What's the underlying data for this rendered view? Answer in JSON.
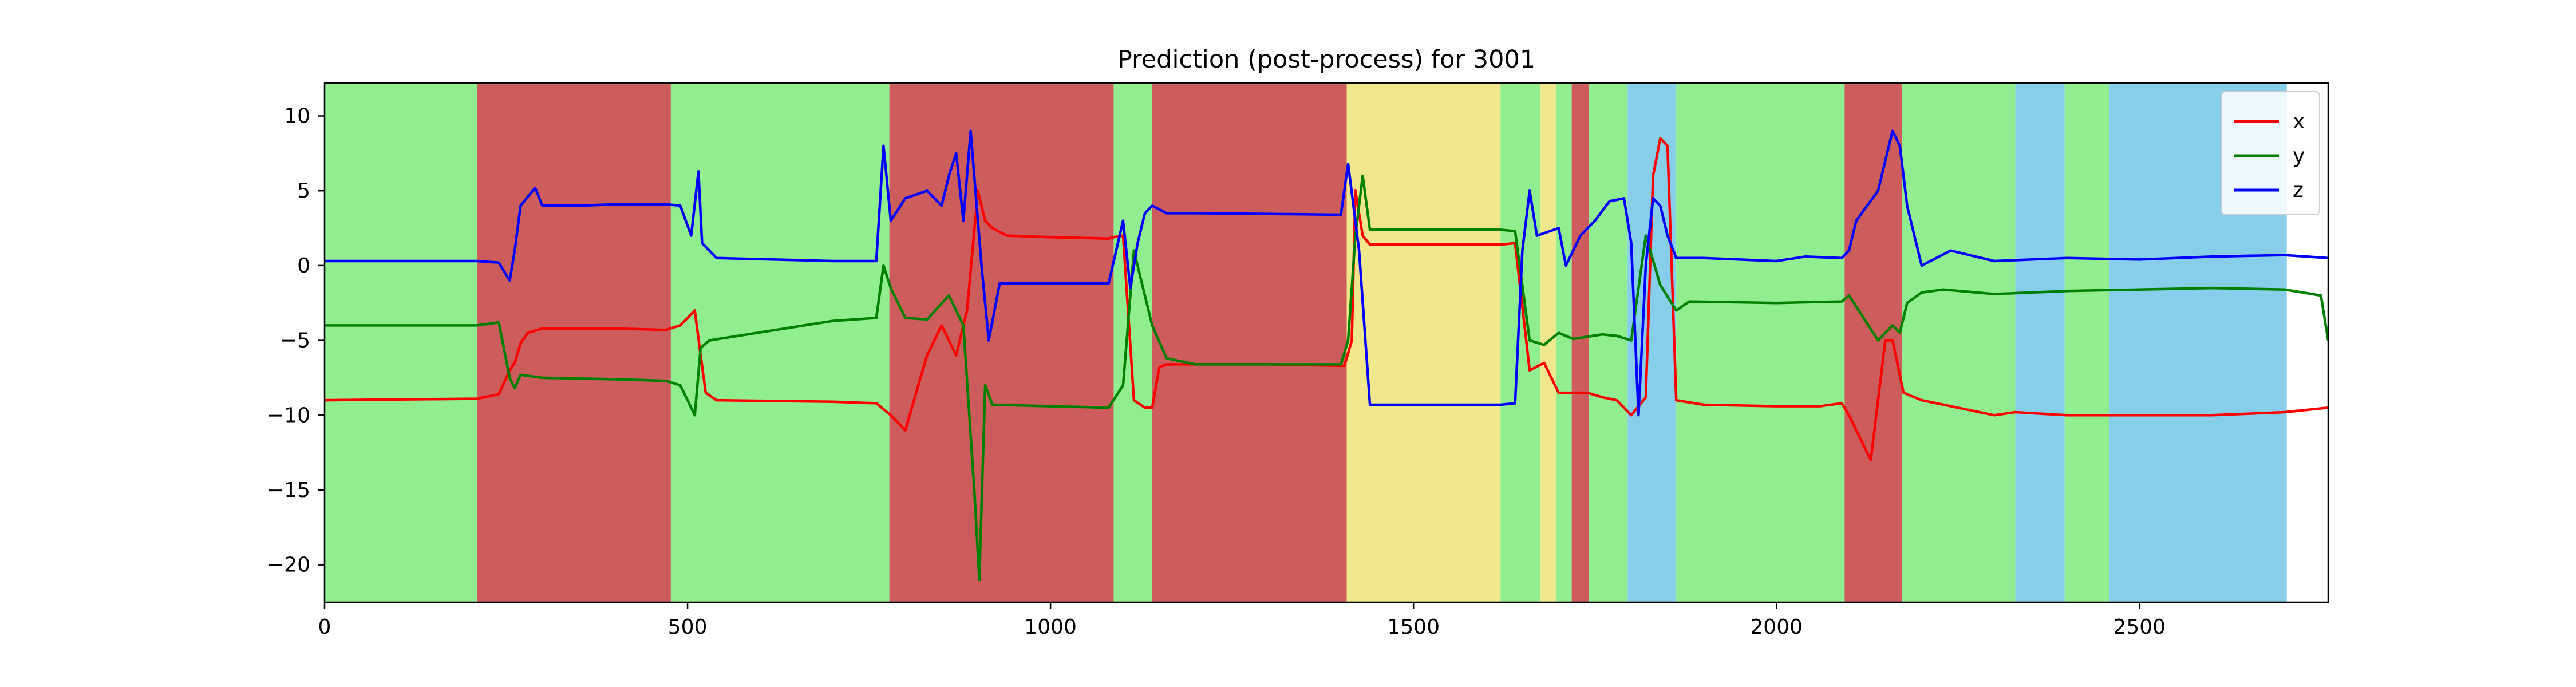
{
  "chart_data": {
    "type": "line",
    "title": "Prediction (post-process) for 3001",
    "xlabel": "",
    "ylabel": "",
    "xlim": [
      0,
      2760
    ],
    "ylim": [
      -22.5,
      12.2
    ],
    "x_ticks": [
      0,
      500,
      1000,
      1500,
      2000,
      2500
    ],
    "y_ticks": [
      10,
      5,
      0,
      -5,
      -10,
      -15,
      -20
    ],
    "x_tick_labels": [
      "0",
      "500",
      "1000",
      "1500",
      "2000",
      "2500"
    ],
    "y_tick_labels": [
      "10",
      "5",
      "0",
      "−5",
      "−10",
      "−15",
      "−20"
    ],
    "grid": false,
    "legend_position": "top-right",
    "background_bands": [
      {
        "start": 0,
        "end": 210,
        "color": "#90EE90"
      },
      {
        "start": 210,
        "end": 477,
        "color": "#CD5C5C"
      },
      {
        "start": 477,
        "end": 778,
        "color": "#90EE90"
      },
      {
        "start": 778,
        "end": 1087,
        "color": "#CD5C5C"
      },
      {
        "start": 1087,
        "end": 1140,
        "color": "#90EE90"
      },
      {
        "start": 1140,
        "end": 1408,
        "color": "#CD5C5C"
      },
      {
        "start": 1408,
        "end": 1620,
        "color": "#F0E68C"
      },
      {
        "start": 1620,
        "end": 1675,
        "color": "#90EE90"
      },
      {
        "start": 1675,
        "end": 1697,
        "color": "#F0E68C"
      },
      {
        "start": 1697,
        "end": 1718,
        "color": "#90EE90"
      },
      {
        "start": 1718,
        "end": 1742,
        "color": "#CD5C5C"
      },
      {
        "start": 1742,
        "end": 1795,
        "color": "#90EE90"
      },
      {
        "start": 1795,
        "end": 1862,
        "color": "#87CEEB"
      },
      {
        "start": 1862,
        "end": 2094,
        "color": "#90EE90"
      },
      {
        "start": 2094,
        "end": 2173,
        "color": "#CD5C5C"
      },
      {
        "start": 2173,
        "end": 2329,
        "color": "#90EE90"
      },
      {
        "start": 2329,
        "end": 2397,
        "color": "#87CEEB"
      },
      {
        "start": 2397,
        "end": 2458,
        "color": "#90EE90"
      },
      {
        "start": 2458,
        "end": 2703,
        "color": "#87CEEB"
      }
    ],
    "series": [
      {
        "name": "x",
        "color": "#FF0000",
        "points": [
          [
            0,
            -9
          ],
          [
            210,
            -8.9
          ],
          [
            240,
            -8.6
          ],
          [
            255,
            -7
          ],
          [
            262,
            -6.5
          ],
          [
            270,
            -5.2
          ],
          [
            280,
            -4.5
          ],
          [
            300,
            -4.2
          ],
          [
            400,
            -4.2
          ],
          [
            470,
            -4.3
          ],
          [
            490,
            -4
          ],
          [
            510,
            -3
          ],
          [
            518,
            -6
          ],
          [
            525,
            -8.5
          ],
          [
            540,
            -9
          ],
          [
            700,
            -9.1
          ],
          [
            760,
            -9.2
          ],
          [
            780,
            -10
          ],
          [
            800,
            -11
          ],
          [
            830,
            -6
          ],
          [
            850,
            -4
          ],
          [
            870,
            -6
          ],
          [
            885,
            -3
          ],
          [
            900,
            5
          ],
          [
            910,
            3
          ],
          [
            920,
            2.5
          ],
          [
            940,
            2
          ],
          [
            1000,
            1.9
          ],
          [
            1080,
            1.8
          ],
          [
            1087,
            1.9
          ],
          [
            1100,
            2
          ],
          [
            1115,
            -9
          ],
          [
            1130,
            -9.5
          ],
          [
            1140,
            -9.5
          ],
          [
            1150,
            -6.8
          ],
          [
            1160,
            -6.6
          ],
          [
            1300,
            -6.6
          ],
          [
            1405,
            -6.7
          ],
          [
            1415,
            -5
          ],
          [
            1420,
            5
          ],
          [
            1430,
            2
          ],
          [
            1440,
            1.4
          ],
          [
            1620,
            1.4
          ],
          [
            1640,
            1.5
          ],
          [
            1660,
            -7
          ],
          [
            1680,
            -6.5
          ],
          [
            1700,
            -8.5
          ],
          [
            1740,
            -8.5
          ],
          [
            1760,
            -8.8
          ],
          [
            1780,
            -9
          ],
          [
            1800,
            -10
          ],
          [
            1820,
            -8.8
          ],
          [
            1830,
            6
          ],
          [
            1840,
            8.5
          ],
          [
            1850,
            8
          ],
          [
            1862,
            -9
          ],
          [
            1900,
            -9.3
          ],
          [
            2000,
            -9.4
          ],
          [
            2060,
            -9.4
          ],
          [
            2090,
            -9.2
          ],
          [
            2100,
            -10
          ],
          [
            2130,
            -13
          ],
          [
            2150,
            -5
          ],
          [
            2160,
            -5
          ],
          [
            2175,
            -8.5
          ],
          [
            2200,
            -9
          ],
          [
            2250,
            -9.5
          ],
          [
            2300,
            -10
          ],
          [
            2329,
            -9.8
          ],
          [
            2400,
            -10
          ],
          [
            2500,
            -10
          ],
          [
            2600,
            -10
          ],
          [
            2700,
            -9.8
          ],
          [
            2760,
            -9.5
          ]
        ]
      },
      {
        "name": "y",
        "color": "#008000",
        "points": [
          [
            0,
            -4
          ],
          [
            210,
            -4
          ],
          [
            240,
            -3.8
          ],
          [
            255,
            -7.5
          ],
          [
            262,
            -8.2
          ],
          [
            270,
            -7.3
          ],
          [
            300,
            -7.5
          ],
          [
            400,
            -7.6
          ],
          [
            470,
            -7.7
          ],
          [
            490,
            -8
          ],
          [
            510,
            -10
          ],
          [
            518,
            -5.5
          ],
          [
            530,
            -5
          ],
          [
            700,
            -3.7
          ],
          [
            760,
            -3.5
          ],
          [
            770,
            0
          ],
          [
            780,
            -1.5
          ],
          [
            800,
            -3.5
          ],
          [
            830,
            -3.6
          ],
          [
            860,
            -2
          ],
          [
            880,
            -4
          ],
          [
            895,
            -15
          ],
          [
            902,
            -21
          ],
          [
            910,
            -8
          ],
          [
            920,
            -9.3
          ],
          [
            1000,
            -9.4
          ],
          [
            1080,
            -9.5
          ],
          [
            1100,
            -8
          ],
          [
            1115,
            1
          ],
          [
            1130,
            -2
          ],
          [
            1140,
            -4
          ],
          [
            1160,
            -6.2
          ],
          [
            1200,
            -6.6
          ],
          [
            1400,
            -6.6
          ],
          [
            1410,
            -5
          ],
          [
            1420,
            2
          ],
          [
            1430,
            6
          ],
          [
            1440,
            2.4
          ],
          [
            1620,
            2.4
          ],
          [
            1640,
            2.3
          ],
          [
            1660,
            -5
          ],
          [
            1680,
            -5.3
          ],
          [
            1700,
            -4.5
          ],
          [
            1720,
            -4.9
          ],
          [
            1760,
            -4.6
          ],
          [
            1780,
            -4.7
          ],
          [
            1800,
            -5
          ],
          [
            1820,
            2
          ],
          [
            1840,
            -1.3
          ],
          [
            1862,
            -3
          ],
          [
            1880,
            -2.4
          ],
          [
            2000,
            -2.5
          ],
          [
            2090,
            -2.4
          ],
          [
            2100,
            -2
          ],
          [
            2120,
            -3.5
          ],
          [
            2140,
            -5
          ],
          [
            2160,
            -4
          ],
          [
            2170,
            -4.5
          ],
          [
            2180,
            -2.5
          ],
          [
            2200,
            -1.8
          ],
          [
            2230,
            -1.6
          ],
          [
            2300,
            -1.9
          ],
          [
            2400,
            -1.7
          ],
          [
            2500,
            -1.6
          ],
          [
            2600,
            -1.5
          ],
          [
            2700,
            -1.6
          ],
          [
            2750,
            -2
          ],
          [
            2760,
            -5
          ]
        ]
      },
      {
        "name": "z",
        "color": "#0000FF",
        "points": [
          [
            0,
            0.3
          ],
          [
            210,
            0.3
          ],
          [
            240,
            0.2
          ],
          [
            255,
            -1
          ],
          [
            262,
            1
          ],
          [
            270,
            4
          ],
          [
            290,
            5.2
          ],
          [
            300,
            4
          ],
          [
            350,
            4
          ],
          [
            400,
            4.1
          ],
          [
            470,
            4.1
          ],
          [
            490,
            4
          ],
          [
            505,
            2
          ],
          [
            515,
            6.3
          ],
          [
            520,
            1.5
          ],
          [
            540,
            0.5
          ],
          [
            700,
            0.3
          ],
          [
            760,
            0.3
          ],
          [
            770,
            8
          ],
          [
            780,
            3
          ],
          [
            800,
            4.5
          ],
          [
            830,
            5
          ],
          [
            850,
            4
          ],
          [
            860,
            6
          ],
          [
            870,
            7.5
          ],
          [
            880,
            3
          ],
          [
            890,
            9
          ],
          [
            905,
            0
          ],
          [
            915,
            -5
          ],
          [
            930,
            -1.2
          ],
          [
            1000,
            -1.2
          ],
          [
            1080,
            -1.2
          ],
          [
            1100,
            3
          ],
          [
            1110,
            -1.5
          ],
          [
            1120,
            1.5
          ],
          [
            1130,
            3.5
          ],
          [
            1140,
            4
          ],
          [
            1160,
            3.5
          ],
          [
            1200,
            3.5
          ],
          [
            1400,
            3.4
          ],
          [
            1410,
            6.8
          ],
          [
            1425,
            1
          ],
          [
            1440,
            -9.3
          ],
          [
            1620,
            -9.3
          ],
          [
            1640,
            -9.2
          ],
          [
            1650,
            1
          ],
          [
            1660,
            5
          ],
          [
            1670,
            2
          ],
          [
            1700,
            2.5
          ],
          [
            1710,
            0
          ],
          [
            1730,
            2
          ],
          [
            1750,
            3
          ],
          [
            1770,
            4.3
          ],
          [
            1790,
            4.5
          ],
          [
            1800,
            1.5
          ],
          [
            1810,
            -10
          ],
          [
            1820,
            0
          ],
          [
            1830,
            4.5
          ],
          [
            1840,
            4
          ],
          [
            1850,
            2
          ],
          [
            1862,
            0.5
          ],
          [
            1900,
            0.5
          ],
          [
            2000,
            0.3
          ],
          [
            2040,
            0.6
          ],
          [
            2090,
            0.5
          ],
          [
            2100,
            1
          ],
          [
            2110,
            3
          ],
          [
            2140,
            5
          ],
          [
            2150,
            7
          ],
          [
            2160,
            9
          ],
          [
            2170,
            8
          ],
          [
            2180,
            4
          ],
          [
            2200,
            0
          ],
          [
            2240,
            1
          ],
          [
            2300,
            0.3
          ],
          [
            2400,
            0.5
          ],
          [
            2500,
            0.4
          ],
          [
            2600,
            0.6
          ],
          [
            2700,
            0.7
          ],
          [
            2760,
            0.5
          ]
        ]
      }
    ]
  }
}
